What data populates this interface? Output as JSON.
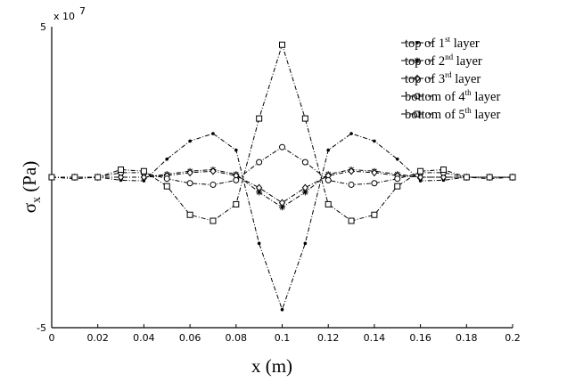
{
  "chart_data": {
    "type": "line",
    "xlabel_parts": [
      "x (m)"
    ],
    "ylabel_parts": [
      "σ",
      "x",
      " (Pa)"
    ],
    "ylabel": "σx (Pa)",
    "xlabel": "x (m)",
    "xlim": [
      0,
      0.2
    ],
    "ylim": [
      -50000000,
      50000000
    ],
    "x_ticks": [
      "0",
      "0.02",
      "0.04",
      "0.06",
      "0.08",
      "0.1",
      "0.12",
      "0.14",
      "0.16",
      "0.18",
      "0.2"
    ],
    "y_ticks": [
      "5",
      "-5"
    ],
    "y_multiplier": "x 10",
    "y_multiplier_exp": "7",
    "grid": false,
    "legend_position": "top-right",
    "x": [
      0,
      0.01,
      0.02,
      0.03,
      0.04,
      0.05,
      0.06,
      0.07,
      0.08,
      0.09,
      0.1,
      0.11,
      0.12,
      0.13,
      0.14,
      0.15,
      0.16,
      0.17,
      0.18,
      0.19,
      0.2
    ],
    "series": [
      {
        "name": "top of 1st layer",
        "label_base": "top of 1",
        "label_sup": "st",
        "label_rest": " layer",
        "marker": "dot",
        "values": [
          0,
          -500000,
          0,
          -1000000,
          -1200000,
          6000000,
          12000000,
          14500000,
          9000000,
          -22000000,
          -44000000,
          -22000000,
          9000000,
          14500000,
          12000000,
          6000000,
          -1200000,
          -1000000,
          0,
          -500000,
          0
        ]
      },
      {
        "name": "top of 2nd layer",
        "label_base": "top of 2",
        "label_sup": "nd",
        "label_rest": " layer",
        "marker": "star",
        "values": [
          0,
          0,
          0,
          0,
          0,
          1000000,
          2000000,
          2500000,
          1000000,
          -5000000,
          -10000000,
          -5000000,
          1000000,
          2500000,
          2000000,
          1000000,
          0,
          0,
          0,
          0,
          0
        ]
      },
      {
        "name": "top of 3rd layer",
        "label_base": "top of 3",
        "label_sup": "rd",
        "label_rest": " layer",
        "marker": "diamond",
        "values": [
          0,
          0,
          0,
          0,
          0,
          500000,
          1500000,
          2000000,
          500000,
          -3500000,
          -8500000,
          -3500000,
          500000,
          2000000,
          1500000,
          500000,
          0,
          0,
          0,
          0,
          0
        ]
      },
      {
        "name": "bottom of 4th layer",
        "label_base": "bottom of 4",
        "label_sup": "th",
        "label_rest": " layer",
        "marker": "circle",
        "values": [
          0,
          0,
          0,
          1500000,
          1500000,
          -500000,
          -2000000,
          -2500000,
          -1000000,
          5000000,
          10000000,
          5000000,
          -1000000,
          -2500000,
          -2000000,
          -500000,
          1500000,
          1500000,
          0,
          0,
          0
        ]
      },
      {
        "name": "bottom of 5th layer",
        "label_base": "bottom of 5",
        "label_sup": "th",
        "label_rest": " layer",
        "marker": "square",
        "values": [
          0,
          0,
          0,
          2500000,
          2000000,
          -3000000,
          -12500000,
          -14500000,
          -9000000,
          19500000,
          44000000,
          19500000,
          -9000000,
          -14500000,
          -12500000,
          -3000000,
          2000000,
          2500000,
          0,
          0,
          0
        ]
      }
    ]
  }
}
